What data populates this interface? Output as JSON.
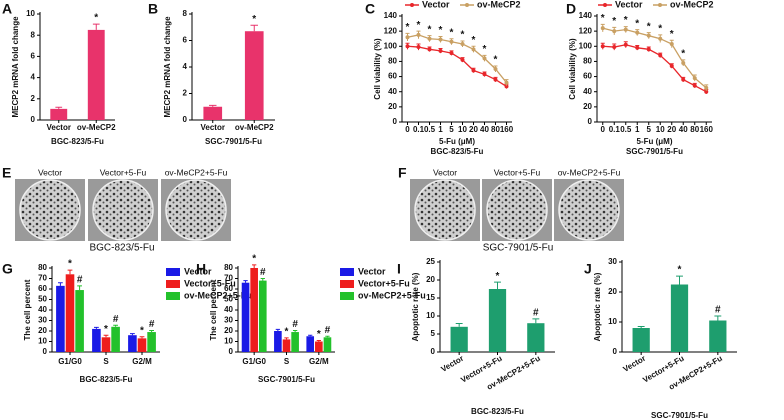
{
  "chart_data": [
    {
      "type": "bar",
      "panel_label": "A",
      "ylabel": "MECP2 mRNA fold change",
      "caption": "BGC-823/5-Fu",
      "categories": [
        "Vector",
        "ov-MeCP2"
      ],
      "values": [
        1.05,
        8.5
      ],
      "errors": [
        0.15,
        0.55
      ],
      "annotations": [
        null,
        "*"
      ],
      "color": "#e8336b",
      "ylim": [
        0,
        10
      ],
      "yticks": [
        0,
        2,
        4,
        6,
        8,
        10
      ]
    },
    {
      "type": "bar",
      "panel_label": "B",
      "ylabel": "MECP2 mRNA fold change",
      "caption": "SGC-7901/5-Fu",
      "categories": [
        "Vector",
        "ov-MeCP2"
      ],
      "values": [
        1.0,
        6.7
      ],
      "errors": [
        0.1,
        0.45
      ],
      "annotations": [
        null,
        "*"
      ],
      "color": "#e8336b",
      "ylim": [
        0,
        8
      ],
      "yticks": [
        0,
        2,
        4,
        6,
        8
      ]
    },
    {
      "type": "line",
      "panel_label": "C",
      "ylabel": "Cell viability (%)",
      "xlabel": "5-Fu (μM)",
      "caption": "BGC-823/5-Fu",
      "categories": [
        "0",
        "0.1",
        "0.5",
        "1",
        "5",
        "10",
        "20",
        "40",
        "80",
        "160"
      ],
      "series": [
        {
          "name": "Vector",
          "color": "#e8262b",
          "values": [
            100,
            99,
            96,
            94,
            91,
            82,
            68,
            63,
            56,
            47
          ],
          "errors": [
            4,
            4,
            3,
            3,
            3,
            3,
            3,
            3,
            3,
            3
          ]
        },
        {
          "name": "ov-MeCP2",
          "color": "#c9a063",
          "values": [
            112,
            115,
            110,
            109,
            106,
            103,
            96,
            84,
            70,
            52
          ],
          "errors": [
            5,
            5,
            4,
            4,
            4,
            4,
            4,
            4,
            4,
            4
          ]
        }
      ],
      "annotations": [
        "*",
        "*",
        "*",
        "*",
        "*",
        "*",
        "*",
        "*",
        "*",
        null
      ],
      "ylim": [
        0,
        140
      ],
      "yticks": [
        0,
        20,
        40,
        60,
        80,
        100,
        120,
        140
      ]
    },
    {
      "type": "line",
      "panel_label": "D",
      "ylabel": "Cell viability (%)",
      "xlabel": "5-Fu (μM)",
      "caption": "SGC-7901/5-Fu",
      "categories": [
        "0",
        "0.1",
        "0.5",
        "1",
        "5",
        "10",
        "20",
        "40",
        "80",
        "160"
      ],
      "series": [
        {
          "name": "Vector",
          "color": "#e8262b",
          "values": [
            100,
            99,
            102,
            98,
            96,
            88,
            74,
            56,
            48,
            40
          ],
          "errors": [
            4,
            4,
            4,
            3,
            3,
            3,
            3,
            3,
            3,
            3
          ]
        },
        {
          "name": "ov-MeCP2",
          "color": "#c9a063",
          "values": [
            124,
            120,
            122,
            118,
            114,
            110,
            103,
            78,
            58,
            45
          ],
          "errors": [
            5,
            5,
            4,
            4,
            4,
            5,
            5,
            4,
            4,
            4
          ]
        }
      ],
      "annotations": [
        "*",
        "*",
        "*",
        "*",
        "*",
        "*",
        "*",
        "*",
        null,
        null
      ],
      "ylim": [
        0,
        140
      ],
      "yticks": [
        0,
        20,
        40,
        60,
        80,
        100,
        120,
        140
      ]
    },
    {
      "type": "bar",
      "panel_label": "G",
      "ylabel": "The cell percent",
      "caption": "BGC-823/5-Fu",
      "categories": [
        "G1/G0",
        "S",
        "G2/M"
      ],
      "series": [
        {
          "name": "Vector",
          "color": "#1a1ae6",
          "values": [
            63,
            22,
            16
          ],
          "errors": [
            3,
            1.5,
            1.5
          ]
        },
        {
          "name": "Vector+5-Fu",
          "color": "#ee1d1d",
          "values": [
            74,
            14,
            13
          ],
          "errors": [
            4,
            2,
            1.5
          ],
          "annotations": [
            "*",
            "*",
            "*"
          ]
        },
        {
          "name": "ov-MeCP2+5-Fu",
          "color": "#23c12b",
          "values": [
            59,
            24,
            19
          ],
          "errors": [
            4,
            1.5,
            1.5
          ],
          "annotations": [
            "#",
            "#",
            "#"
          ]
        }
      ],
      "ylim": [
        0,
        80
      ],
      "yticks": [
        0,
        10,
        20,
        30,
        40,
        50,
        60,
        70,
        80
      ]
    },
    {
      "type": "bar",
      "panel_label": "H",
      "ylabel": "The cell percent",
      "caption": "SGC-7901/5-Fu",
      "categories": [
        "G1/G0",
        "S",
        "G2/M"
      ],
      "series": [
        {
          "name": "Vector",
          "color": "#1a1ae6",
          "values": [
            66,
            20,
            15
          ],
          "errors": [
            2,
            1.5,
            1
          ]
        },
        {
          "name": "Vector+5-Fu",
          "color": "#ee1d1d",
          "values": [
            80,
            12,
            10
          ],
          "errors": [
            3,
            1.5,
            1
          ],
          "annotations": [
            "*",
            "*",
            "*"
          ]
        },
        {
          "name": "ov-MeCP2+5-Fu",
          "color": "#23c12b",
          "values": [
            68,
            19,
            14
          ],
          "errors": [
            2,
            1.5,
            1
          ],
          "annotations": [
            "#",
            "#",
            "#"
          ]
        }
      ],
      "ylim": [
        0,
        80
      ],
      "yticks": [
        0,
        10,
        20,
        30,
        40,
        50,
        60,
        70,
        80
      ]
    },
    {
      "type": "bar",
      "panel_label": "I",
      "ylabel": "Apoptotic rate (%)",
      "caption": "BGC-823/5-Fu",
      "categories": [
        "Vector",
        "Vector+5-Fu",
        "ov-MeCP2+5-Fu"
      ],
      "values": [
        7,
        17.5,
        8
      ],
      "errors": [
        0.9,
        1.9,
        1.2
      ],
      "annotations": [
        null,
        "*",
        "#"
      ],
      "color": "#1e9e6e",
      "ylim": [
        0,
        25
      ],
      "yticks": [
        0,
        5,
        10,
        15,
        20,
        25
      ]
    },
    {
      "type": "bar",
      "panel_label": "J",
      "ylabel": "Apoptotic rate (%)",
      "caption": "SGC-7901/5-Fu",
      "categories": [
        "Vector",
        "Vector+5-Fu",
        "ov-MeCP2+5-Fu"
      ],
      "values": [
        8,
        22.5,
        10.5
      ],
      "errors": [
        0.5,
        2.8,
        1.5
      ],
      "annotations": [
        null,
        "*",
        "#"
      ],
      "color": "#1e9e6e",
      "ylim": [
        0,
        30
      ],
      "yticks": [
        0,
        10,
        20,
        30
      ]
    }
  ],
  "images": [
    {
      "panel_label": "E",
      "labels": [
        "Vector",
        "Vector+5-Fu",
        "ov-MeCP2+5-Fu"
      ],
      "caption": "BGC-823/5-Fu"
    },
    {
      "panel_label": "F",
      "labels": [
        "Vector",
        "Vector+5-Fu",
        "ov-MeCP2+5-Fu"
      ],
      "caption": "SGC-7901/5-Fu"
    }
  ]
}
